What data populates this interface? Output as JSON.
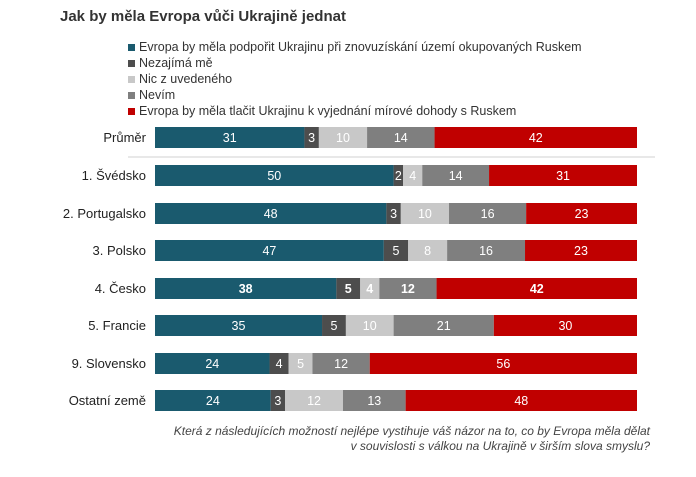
{
  "title": "Jak by měla Evropa vůči Ukrajině jednat",
  "footnote": "Která z následujících možností nejlépe vystihuje váš názor na to, co by Evropa měla dělat v souvislosti s válkou na Ukrajině v širším slova smyslu?",
  "chart_data": {
    "type": "bar",
    "stacked": true,
    "orientation": "horizontal",
    "xlim": [
      0,
      100
    ],
    "categories": [
      "Průměr",
      "1. Švédsko",
      "2. Portugalsko",
      "3. Polsko",
      "4. Česko",
      "5. Francie",
      "9. Slovensko",
      "Ostatní země"
    ],
    "highlighted_category": "4. Česko",
    "series": [
      {
        "name": "Evropa by měla podpořit Ukrajinu při znovuzískání území okupovaných Ruskem",
        "color": "#1a5a6e",
        "values": [
          31,
          50,
          48,
          47,
          38,
          35,
          24,
          24
        ]
      },
      {
        "name": "Nezajímá mě",
        "color": "#4d4d4d",
        "values": [
          3,
          2,
          3,
          5,
          5,
          5,
          4,
          3
        ]
      },
      {
        "name": "Nic z uvedeného",
        "color": "#c8c8c8",
        "values": [
          10,
          4,
          10,
          8,
          4,
          10,
          5,
          12
        ]
      },
      {
        "name": "Nevím",
        "color": "#7f7f7f",
        "values": [
          14,
          14,
          16,
          16,
          12,
          21,
          12,
          13
        ]
      },
      {
        "name": "Evropa by měla tlačit Ukrajinu k vyjednání mírové dohody s Ruskem",
        "color": "#c00000",
        "values": [
          42,
          31,
          23,
          23,
          42,
          30,
          56,
          48
        ]
      }
    ],
    "legend_position": "top"
  }
}
